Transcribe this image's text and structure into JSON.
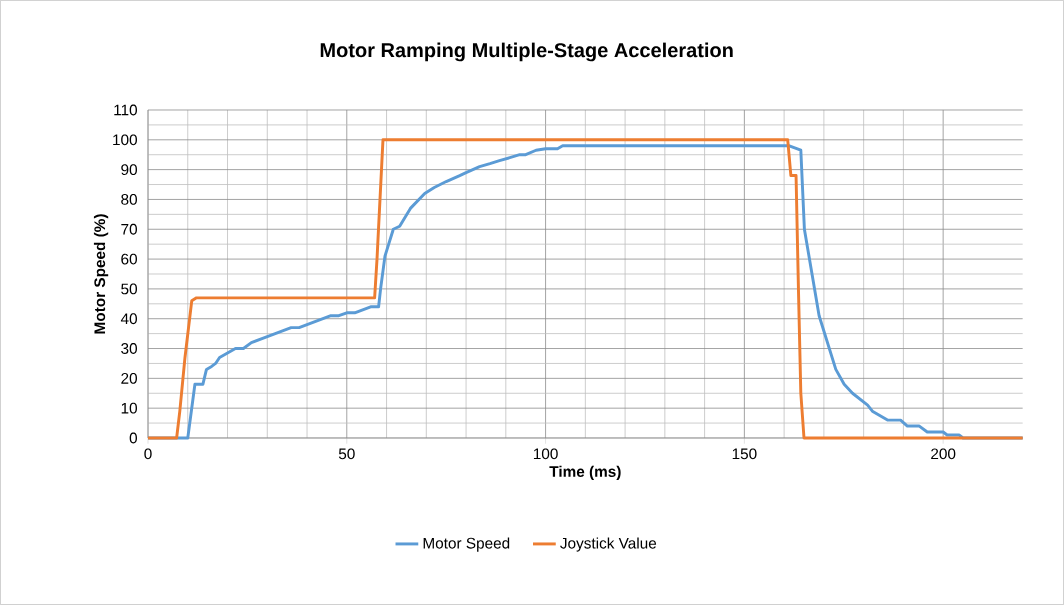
{
  "chart_data": {
    "type": "line",
    "title": "Motor Ramping Multiple-Stage Acceleration",
    "xlabel": "Time (ms)",
    "ylabel": "Motor Speed (%)",
    "xlim": [
      0,
      220
    ],
    "ylim": [
      0,
      110
    ],
    "xticks": [
      0,
      50,
      100,
      150,
      200
    ],
    "yticks": [
      0,
      10,
      20,
      30,
      40,
      50,
      60,
      70,
      80,
      90,
      100,
      110
    ],
    "grid": true,
    "legend": "bottom",
    "series": [
      {
        "name": "Motor Speed",
        "color": "#5b9bd5",
        "x": [
          0,
          10,
          11.8,
          13.8,
          14.7,
          16,
          17,
          18,
          20,
          22,
          24,
          26,
          28,
          30,
          32,
          34,
          36,
          38,
          40,
          42,
          44,
          46,
          48,
          50,
          52,
          54,
          56,
          58,
          58.5,
          59.6,
          61.7,
          63.3,
          66,
          69.6,
          72,
          75,
          78.4,
          80,
          83.4,
          86,
          88.4,
          91,
          93.5,
          95,
          97.6,
          100,
          103,
          104.3,
          161.3,
          164.2,
          165.1,
          168.8,
          173,
          175.1,
          177.2,
          181,
          182.2,
          186,
          189.3,
          191,
          194,
          196,
          200,
          201,
          204,
          205,
          220
        ],
        "values": [
          0,
          0,
          18,
          18,
          23,
          24,
          25,
          27,
          28.5,
          30,
          30,
          32,
          33,
          34,
          35,
          36,
          37,
          37,
          38,
          39,
          40,
          41,
          41,
          42,
          42,
          43,
          44,
          44,
          50,
          61,
          70,
          71,
          77,
          82,
          84,
          86,
          88,
          89,
          91,
          92,
          93,
          94,
          95,
          95,
          96.5,
          97,
          97,
          98,
          98,
          96.5,
          70,
          41,
          23,
          18,
          15,
          11,
          9,
          6,
          6,
          4,
          4,
          2,
          2,
          1,
          1,
          0,
          0
        ]
      },
      {
        "name": "Joystick Value",
        "color": "#ed7d31",
        "x": [
          0,
          7.2,
          8,
          9.3,
          11,
          12.2,
          57,
          57.6,
          59.1,
          160.9,
          161.7,
          163,
          163.6,
          164.2,
          165,
          220
        ],
        "values": [
          0,
          0,
          9,
          27,
          46,
          47,
          47,
          60,
          100,
          100,
          88,
          88,
          50,
          15,
          0,
          0
        ]
      }
    ]
  }
}
